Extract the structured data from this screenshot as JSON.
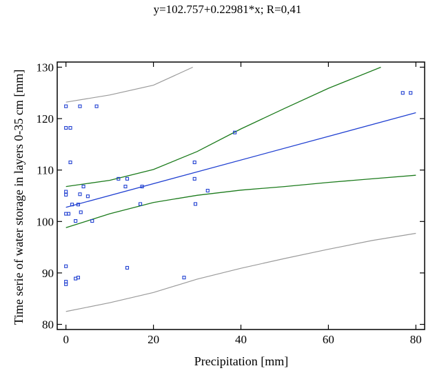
{
  "chart_data": {
    "type": "scatter",
    "title": "y=102.757+0.22981*x; R=0,41",
    "xlabel": "Precipitation [mm]",
    "ylabel": "Time serie of water storage in layers 0-35 cm [mm]",
    "xlim": [
      -2,
      82
    ],
    "ylim": [
      79,
      131
    ],
    "xticks": [
      0,
      20,
      40,
      60,
      80
    ],
    "yticks": [
      80,
      90,
      100,
      110,
      120,
      130
    ],
    "grid": false,
    "colors": {
      "points": "#1f3fd1",
      "regression": "#1f3fd1",
      "confidence": "#1a7a1a",
      "prediction": "#9a9a9a"
    },
    "points": [
      {
        "x": 0,
        "y": 122.4
      },
      {
        "x": 0,
        "y": 118.2
      },
      {
        "x": 0,
        "y": 105.8
      },
      {
        "x": 0,
        "y": 105.2
      },
      {
        "x": 0,
        "y": 101.5
      },
      {
        "x": 0,
        "y": 91.3
      },
      {
        "x": 0,
        "y": 88.3
      },
      {
        "x": 0,
        "y": 87.8
      },
      {
        "x": 0.6,
        "y": 101.5
      },
      {
        "x": 1.0,
        "y": 118.2
      },
      {
        "x": 1.0,
        "y": 111.5
      },
      {
        "x": 1.4,
        "y": 103.3
      },
      {
        "x": 2.2,
        "y": 100.1
      },
      {
        "x": 2.2,
        "y": 88.9
      },
      {
        "x": 2.8,
        "y": 103.3
      },
      {
        "x": 2.8,
        "y": 89.1
      },
      {
        "x": 3.2,
        "y": 122.4
      },
      {
        "x": 3.2,
        "y": 105.3
      },
      {
        "x": 3.4,
        "y": 101.8
      },
      {
        "x": 4.0,
        "y": 106.8
      },
      {
        "x": 5.0,
        "y": 104.9
      },
      {
        "x": 6.0,
        "y": 100.1
      },
      {
        "x": 7.0,
        "y": 122.4
      },
      {
        "x": 12.0,
        "y": 108.3
      },
      {
        "x": 13.6,
        "y": 106.8
      },
      {
        "x": 14.0,
        "y": 108.3
      },
      {
        "x": 14.0,
        "y": 91.0
      },
      {
        "x": 17.0,
        "y": 103.4
      },
      {
        "x": 17.4,
        "y": 106.8
      },
      {
        "x": 27.0,
        "y": 89.1
      },
      {
        "x": 29.4,
        "y": 111.5
      },
      {
        "x": 29.4,
        "y": 108.3
      },
      {
        "x": 29.6,
        "y": 103.4
      },
      {
        "x": 32.4,
        "y": 106.0
      },
      {
        "x": 38.6,
        "y": 117.3
      },
      {
        "x": 77.0,
        "y": 125.0
      },
      {
        "x": 78.8,
        "y": 125.0
      }
    ],
    "regression": {
      "intercept": 102.757,
      "slope": 0.22981,
      "x_range": [
        0,
        80
      ]
    },
    "confidence_band": {
      "upper": [
        [
          0,
          106.8
        ],
        [
          10,
          108.0
        ],
        [
          20,
          110.1
        ],
        [
          30,
          113.6
        ],
        [
          40,
          118.0
        ],
        [
          50,
          122.0
        ],
        [
          60,
          125.9
        ],
        [
          72,
          130.0
        ]
      ],
      "lower": [
        [
          0,
          98.8
        ],
        [
          10,
          101.5
        ],
        [
          20,
          103.7
        ],
        [
          30,
          105.1
        ],
        [
          40,
          106.1
        ],
        [
          50,
          106.8
        ],
        [
          60,
          107.6
        ],
        [
          70,
          108.3
        ],
        [
          80,
          109.0
        ]
      ]
    },
    "prediction_band": {
      "upper": [
        [
          0,
          123.2
        ],
        [
          10,
          124.6
        ],
        [
          20,
          126.5
        ],
        [
          29,
          130.0
        ]
      ],
      "lower": [
        [
          0,
          82.5
        ],
        [
          10,
          84.2
        ],
        [
          20,
          86.2
        ],
        [
          30,
          88.8
        ],
        [
          40,
          90.9
        ],
        [
          50,
          92.8
        ],
        [
          60,
          94.6
        ],
        [
          70,
          96.3
        ],
        [
          80,
          97.7
        ]
      ]
    }
  }
}
